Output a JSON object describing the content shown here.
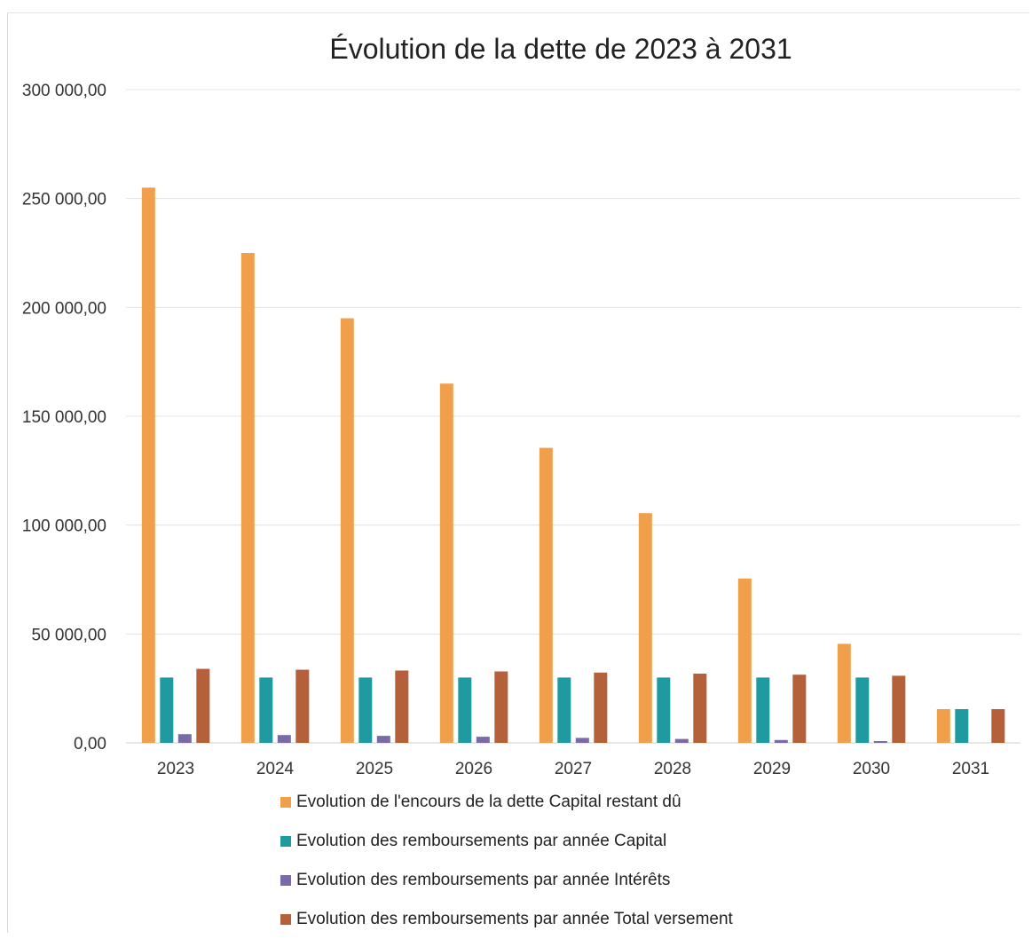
{
  "chart_data": {
    "type": "bar",
    "title": "Évolution de la dette de 2023 à 2031",
    "categories": [
      "2023",
      "2024",
      "2025",
      "2026",
      "2027",
      "2028",
      "2029",
      "2030",
      "2031"
    ],
    "ylim": [
      0,
      300000
    ],
    "yticks": [
      0,
      50000,
      100000,
      150000,
      200000,
      250000,
      300000
    ],
    "ytick_labels": [
      "0,00",
      "50 000,00",
      "100 000,00",
      "150 000,00",
      "200 000,00",
      "250 000,00",
      "300 000,00"
    ],
    "grid": true,
    "legend_position": "bottom",
    "series": [
      {
        "name": "Evolution de l'encours de la dette Capital restant dû",
        "color": "#F0A04B",
        "values": [
          255000,
          225000,
          195000,
          165000,
          135500,
          105500,
          75500,
          45500,
          15500
        ]
      },
      {
        "name": "Evolution des remboursements par année Capital",
        "color": "#1F9AA0",
        "values": [
          30000,
          30000,
          30000,
          30000,
          30000,
          30000,
          30000,
          30000,
          15500
        ]
      },
      {
        "name": "Evolution des remboursements par année Intérêts",
        "color": "#7A6AA8",
        "values": [
          4000,
          3600,
          3200,
          2800,
          2300,
          1800,
          1300,
          800,
          0
        ]
      },
      {
        "name": "Evolution des remboursements par année Total versement",
        "color": "#B5603A",
        "values": [
          34000,
          33600,
          33200,
          32800,
          32300,
          31800,
          31300,
          30800,
          15500
        ]
      }
    ]
  }
}
